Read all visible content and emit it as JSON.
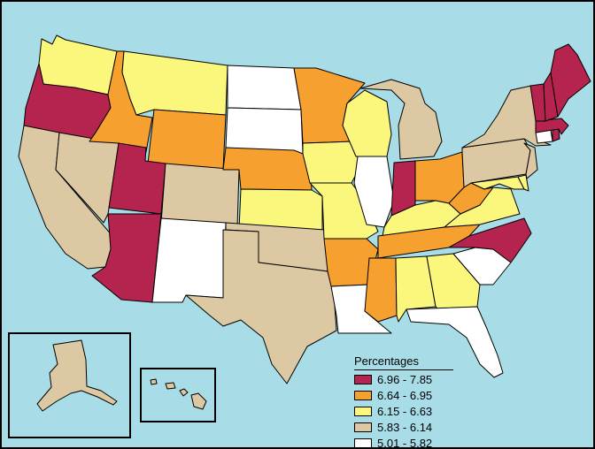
{
  "legend": {
    "title": "Percentages",
    "classes": [
      {
        "label": "6.96 - 7.85",
        "color": "#b5234f"
      },
      {
        "label": "6.64 - 6.95",
        "color": "#f6a030"
      },
      {
        "label": "6.15 - 6.63",
        "color": "#fbf77c"
      },
      {
        "label": "5.83 - 6.14",
        "color": "#dcc8a2"
      },
      {
        "label": "5.01 - 5.82",
        "color": "#ffffff"
      }
    ]
  },
  "colors": {
    "ocean": "#a8dde8",
    "border": "#000000"
  },
  "states": [
    {
      "name": "WA",
      "class": 2
    },
    {
      "name": "OR",
      "class": 0
    },
    {
      "name": "CA",
      "class": 3
    },
    {
      "name": "NV",
      "class": 3
    },
    {
      "name": "ID",
      "class": 1
    },
    {
      "name": "MT",
      "class": 2
    },
    {
      "name": "WY",
      "class": 1
    },
    {
      "name": "UT",
      "class": 0
    },
    {
      "name": "AZ",
      "class": 0
    },
    {
      "name": "CO",
      "class": 3
    },
    {
      "name": "NM",
      "class": 4
    },
    {
      "name": "ND",
      "class": 4
    },
    {
      "name": "SD",
      "class": 4
    },
    {
      "name": "NE",
      "class": 1
    },
    {
      "name": "KS",
      "class": 2
    },
    {
      "name": "OK",
      "class": 3
    },
    {
      "name": "TX",
      "class": 3
    },
    {
      "name": "MN",
      "class": 1
    },
    {
      "name": "IA",
      "class": 2
    },
    {
      "name": "MO",
      "class": 2
    },
    {
      "name": "AR",
      "class": 1
    },
    {
      "name": "LA",
      "class": 4
    },
    {
      "name": "WI",
      "class": 2
    },
    {
      "name": "IL",
      "class": 4
    },
    {
      "name": "MI",
      "class": 3
    },
    {
      "name": "IN",
      "class": 0
    },
    {
      "name": "OH",
      "class": 1
    },
    {
      "name": "KY",
      "class": 2
    },
    {
      "name": "TN",
      "class": 1
    },
    {
      "name": "MS",
      "class": 1
    },
    {
      "name": "AL",
      "class": 2
    },
    {
      "name": "GA",
      "class": 2
    },
    {
      "name": "FL",
      "class": 4
    },
    {
      "name": "SC",
      "class": 4
    },
    {
      "name": "NC",
      "class": 0
    },
    {
      "name": "VA",
      "class": 2
    },
    {
      "name": "WV",
      "class": 1
    },
    {
      "name": "MD",
      "class": 2
    },
    {
      "name": "DE",
      "class": 2
    },
    {
      "name": "PA",
      "class": 3
    },
    {
      "name": "NJ",
      "class": 3
    },
    {
      "name": "NY",
      "class": 3
    },
    {
      "name": "CT",
      "class": 4
    },
    {
      "name": "RI",
      "class": 0
    },
    {
      "name": "MA",
      "class": 0
    },
    {
      "name": "VT",
      "class": 0
    },
    {
      "name": "NH",
      "class": 0
    },
    {
      "name": "ME",
      "class": 0
    },
    {
      "name": "AK",
      "class": 3
    },
    {
      "name": "HI",
      "class": 3
    }
  ]
}
